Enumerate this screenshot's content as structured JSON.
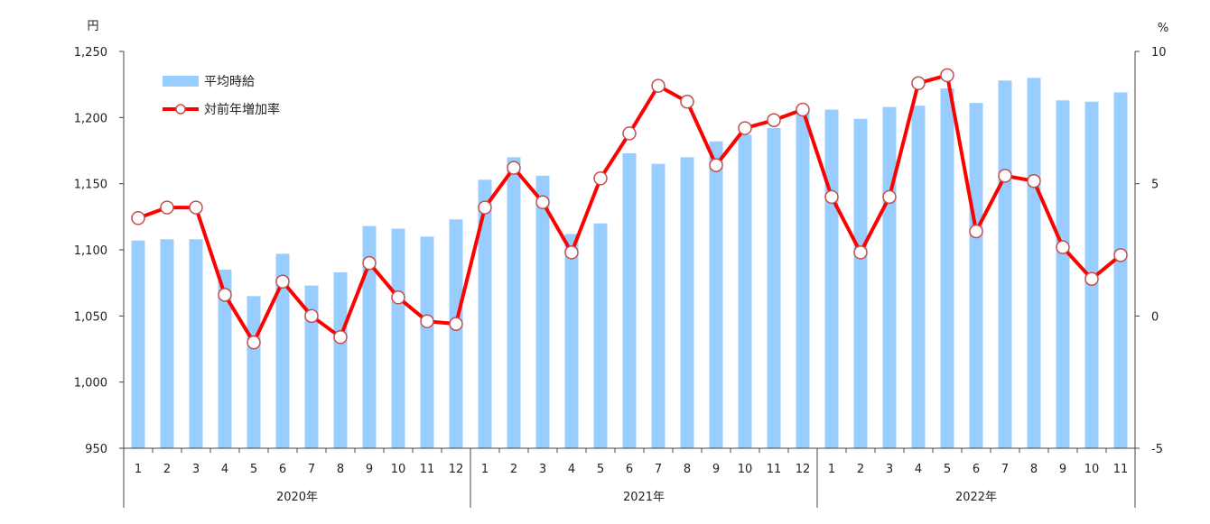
{
  "chart_data": {
    "type": "bar+line",
    "left_unit": "円",
    "right_unit": "%",
    "y_left": {
      "min": 950,
      "max": 1250,
      "ticks": [
        "950",
        "1,000",
        "1,050",
        "1,100",
        "1,150",
        "1,200",
        "1,250"
      ]
    },
    "y_right": {
      "min": -5,
      "max": 10,
      "ticks": [
        "-5",
        "0",
        "5",
        "10"
      ]
    },
    "categories": [
      "1",
      "2",
      "3",
      "4",
      "5",
      "6",
      "7",
      "8",
      "9",
      "10",
      "11",
      "12",
      "1",
      "2",
      "3",
      "4",
      "5",
      "6",
      "7",
      "8",
      "9",
      "10",
      "11",
      "12",
      "1",
      "2",
      "3",
      "4",
      "5",
      "6",
      "7",
      "8",
      "9",
      "10",
      "11"
    ],
    "years": [
      "2020年",
      "2021年",
      "2022年"
    ],
    "series": [
      {
        "name": "平均時給",
        "type": "bar",
        "axis": "left",
        "color": "#99CCFF",
        "values": [
          1107,
          1108,
          1108,
          1085,
          1065,
          1097,
          1073,
          1083,
          1118,
          1116,
          1110,
          1123,
          1153,
          1170,
          1156,
          1112,
          1120,
          1173,
          1165,
          1170,
          1182,
          1187,
          1192,
          1207,
          1206,
          1199,
          1208,
          1209,
          1222,
          1211,
          1228,
          1230,
          1213,
          1212,
          1219
        ]
      },
      {
        "name": "対前年増加率",
        "type": "line",
        "axis": "right",
        "color": "#FF0000",
        "values": [
          3.7,
          4.1,
          4.1,
          0.8,
          -1.0,
          1.3,
          0.0,
          -0.8,
          2.0,
          0.7,
          -0.2,
          -0.3,
          4.1,
          5.6,
          4.3,
          2.4,
          5.2,
          6.9,
          8.7,
          8.1,
          5.7,
          7.1,
          7.4,
          7.8,
          4.5,
          2.4,
          4.5,
          8.8,
          9.1,
          3.2,
          5.3,
          5.1,
          2.6,
          1.4,
          2.3
        ]
      }
    ]
  }
}
